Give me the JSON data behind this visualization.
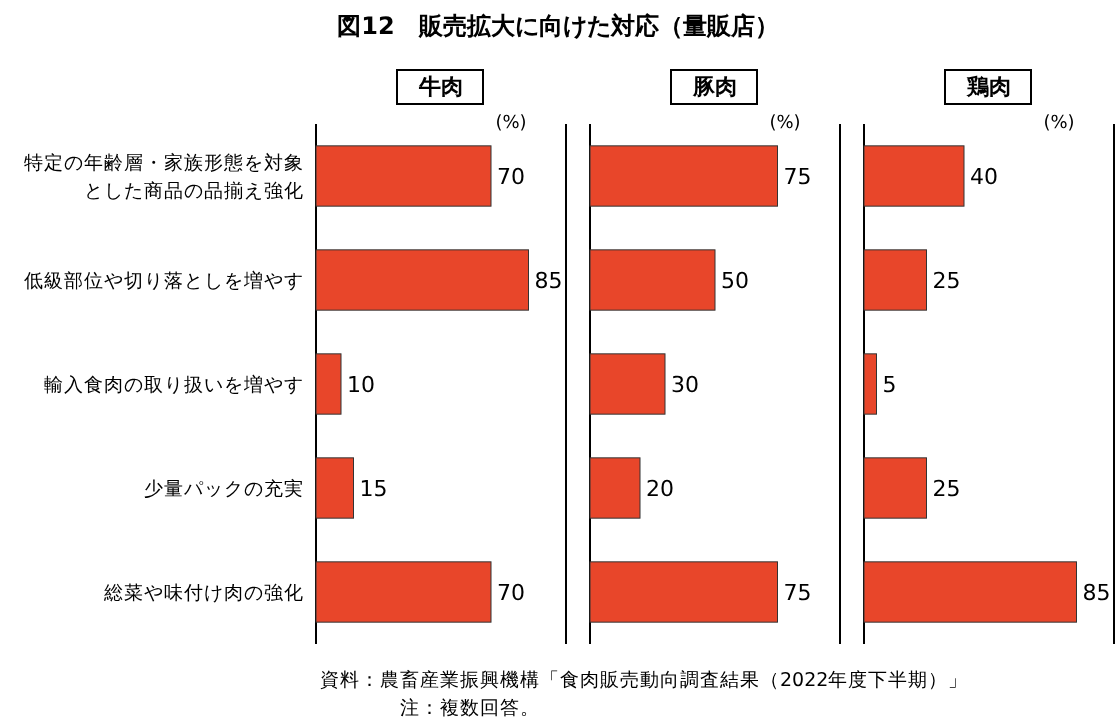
{
  "chart_data": [
    {
      "type": "bar",
      "orientation": "horizontal",
      "title": "図12　販売拡大に向けた対応（量販店）",
      "subtitle": "牛肉",
      "xlabel": "(%)",
      "categories": [
        "特定の年齢層・家族形態を対象とした商品の品揃え強化",
        "低級部位や切り落としを増やす",
        "輸入食肉の取り扱いを増やす",
        "少量パックの充実",
        "総菜や味付け肉の強化"
      ],
      "series": [
        {
          "color": "#e8462a",
          "values": [
            70,
            85,
            10,
            15,
            70
          ]
        }
      ],
      "xlim": [
        0,
        100
      ],
      "data_labels": true,
      "tick_labels": "y",
      "annotations": [
        "資料：農畜産業振興機構「食肉販売動向調査結果（2022年度下半期）」",
        "注：複数回答。"
      ]
    },
    {
      "type": "bar",
      "orientation": "horizontal",
      "subtitle": "豚肉",
      "xlabel": "(%)",
      "categories": [
        null,
        null,
        null,
        null,
        null
      ],
      "series": [
        {
          "color": "#e8462a",
          "values": [
            75,
            50,
            30,
            20,
            75
          ]
        }
      ],
      "xlim": [
        0,
        100
      ],
      "data_labels": true,
      "tick_labels": false
    },
    {
      "type": "bar",
      "orientation": "horizontal",
      "subtitle": "鶏肉",
      "xlabel": "(%)",
      "categories": [
        null,
        null,
        null,
        null,
        null
      ],
      "series": [
        {
          "color": "#e8462a",
          "values": [
            40,
            25,
            5,
            25,
            85
          ]
        }
      ],
      "xlim": [
        0,
        100
      ],
      "data_labels": true,
      "tick_labels": false
    }
  ]
}
